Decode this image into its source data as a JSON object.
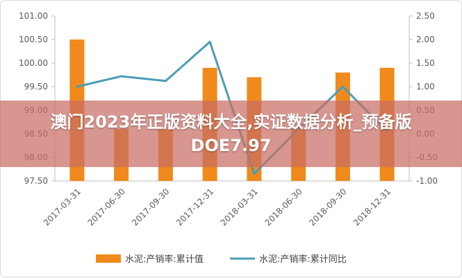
{
  "chart_data": {
    "type": "bar",
    "categories": [
      "2017-03-31",
      "2017-06-30",
      "2017-09-30",
      "2017-12-31",
      "2018-03-31",
      "2018-06-30",
      "2018-09-30",
      "2018-12-31"
    ],
    "series": [
      {
        "name": "水泥:产销率:累计值",
        "type": "bar",
        "axis": "left",
        "values": [
          100.5,
          98.6,
          98.6,
          99.9,
          99.7,
          98.6,
          99.8,
          99.9
        ],
        "color": "#f08a1c"
      },
      {
        "name": "水泥:产销率:累计同比",
        "type": "line",
        "axis": "right",
        "values": [
          1.0,
          1.22,
          1.12,
          1.95,
          -0.85,
          0.1,
          1.0,
          0.05
        ],
        "color": "#4a9db5"
      }
    ],
    "y_left": {
      "min": 97.5,
      "max": 101.0,
      "step": 0.5,
      "ticks": [
        "97.50",
        "98.00",
        "98.50",
        "99.00",
        "99.50",
        "100.00",
        "100.50",
        "101.00"
      ]
    },
    "y_right": {
      "min": -1.0,
      "max": 2.5,
      "step": 0.5,
      "ticks": [
        "-1.00",
        "-0.50",
        "0.00",
        "0.50",
        "1.00",
        "1.50",
        "2.00",
        "2.50"
      ]
    },
    "grid": false,
    "legend_position": "bottom"
  },
  "watermark": {
    "text": "澳门2023年正版资料大全,实证数据分析_预备版DOE7.97"
  },
  "colors": {
    "bar": "#f08a1c",
    "line": "#4a9db5",
    "axis": "#bfbfbf",
    "overlay": "#c86e64"
  }
}
